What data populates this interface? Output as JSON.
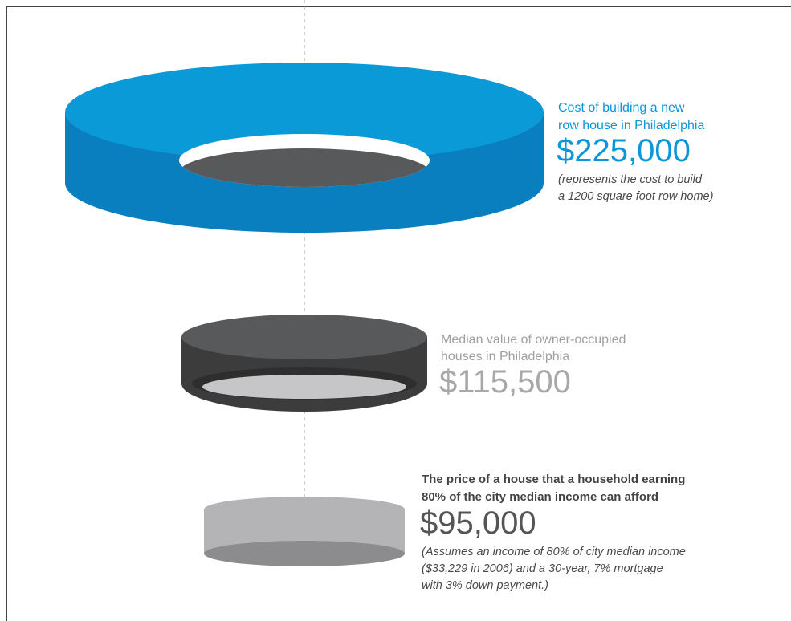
{
  "items": [
    {
      "label": [
        "Cost of building a new",
        "row house in Philadelphia"
      ],
      "value": "$225,000",
      "note": [
        "(represents the cost to build",
        "a 1200 square foot row home)"
      ]
    },
    {
      "label": [
        "Median value of owner-occupied",
        "houses in Philadelphia"
      ],
      "value": "$115,500"
    },
    {
      "label": [
        "The price of a house that a household earning",
        "80% of the city median income can afford"
      ],
      "value": "$95,000",
      "note": [
        "(Assumes an income of 80% of city median income",
        "($33,229 in 2006) and a  30-year, 7% mortgage",
        "with 3% down payment.)"
      ]
    }
  ]
}
